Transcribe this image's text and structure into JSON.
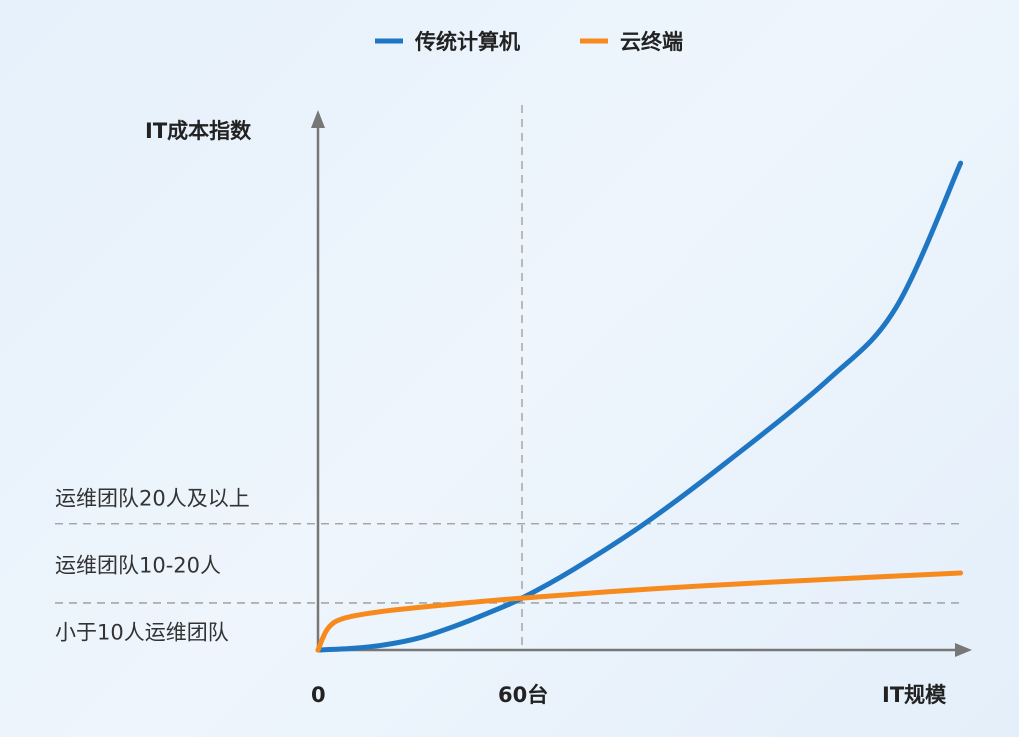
{
  "chart_data": {
    "type": "line",
    "title": "",
    "ylabel": "IT成本指数",
    "xlabel": "IT规模",
    "legend_position": "top-center",
    "x_ticks": [
      {
        "x": 0,
        "label": "0"
      },
      {
        "x": 60,
        "label": "60台"
      }
    ],
    "xlim": [
      0,
      195
    ],
    "ylim": [
      0,
      100
    ],
    "grid": false,
    "reference_lines": {
      "vertical": [
        {
          "x": 60
        }
      ],
      "horizontal": [
        {
          "y": 8.8
        },
        {
          "y": 23.6
        }
      ]
    },
    "y_band_labels": [
      {
        "label": "运维团队20人及以上",
        "y": 28.5
      },
      {
        "label": "运维团队10-20人",
        "y": 16
      },
      {
        "label": "小于10人运维团队",
        "y": 3.5
      }
    ],
    "series": [
      {
        "name": "传统计算机",
        "color": "#1f77c4",
        "x": [
          0,
          10,
          20,
          30,
          40,
          50,
          60,
          75,
          96,
          120,
          150,
          170,
          189
        ],
        "y": [
          0,
          0.3,
          1.0,
          2.3,
          4.4,
          6.9,
          9.7,
          15,
          23.6,
          35,
          50.5,
          64,
          91
        ]
      },
      {
        "name": "云终端",
        "color": "#f78a1d",
        "x": [
          0,
          3,
          8,
          20,
          40,
          60,
          100,
          140,
          189
        ],
        "y": [
          0,
          4.1,
          6.0,
          7.3,
          8.6,
          9.7,
          11.5,
          12.9,
          14.4
        ]
      }
    ]
  }
}
